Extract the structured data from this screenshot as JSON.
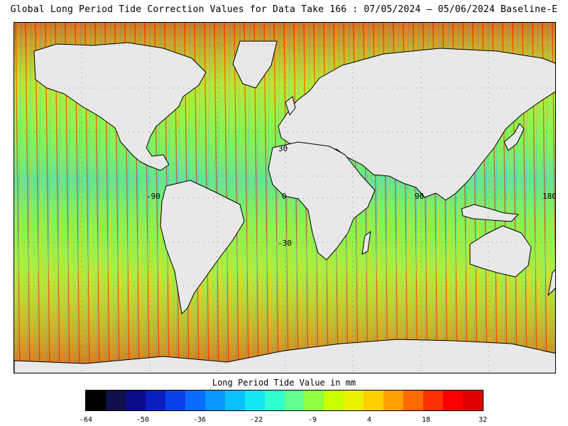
{
  "title": "Global Long Period Tide Correction Values for Data Take 166 : 07/05/2024 — 05/06/2024 Baseline-E",
  "map": {
    "projection": "equirectangular",
    "lon_range": [
      -180,
      180
    ],
    "lat_range": [
      -80,
      80
    ],
    "land_color": "#e8e8e8",
    "coastline_color": "#000000",
    "graticule": "dotted",
    "grid_labels": {
      "lat_30": "30",
      "lat_0": "0",
      "lat_m30": "-30",
      "lon_m90": "-90",
      "lon_0": "0",
      "lon_90": "90",
      "lon_180": "180"
    }
  },
  "colorbar": {
    "title": "Long Period Tide Value in mm",
    "ticks": [
      "-64",
      "-50",
      "-36",
      "-22",
      "-9",
      "4",
      "18",
      "32"
    ],
    "colors": [
      "#000000",
      "#10104a",
      "#0c0c8a",
      "#0a1fc0",
      "#0a40e8",
      "#0a6cff",
      "#0a96ff",
      "#0ac0ff",
      "#14e6f0",
      "#30ffd0",
      "#60ff90",
      "#90ff40",
      "#c8ff00",
      "#eaf000",
      "#ffd000",
      "#ffa000",
      "#ff6a00",
      "#ff3000",
      "#ff0000",
      "#e00000"
    ]
  }
}
